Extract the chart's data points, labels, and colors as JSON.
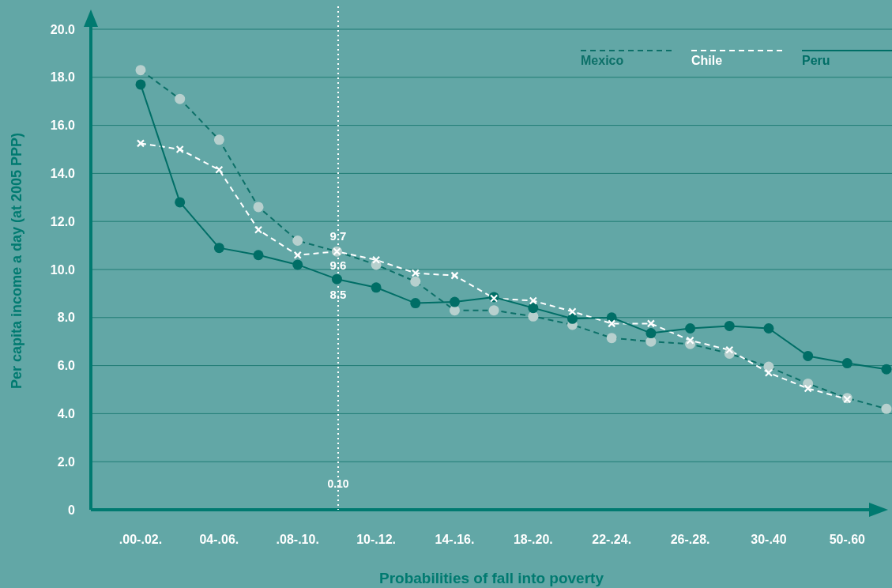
{
  "chart_data": {
    "type": "line",
    "xlabel": "Probabilities of fall into poverty",
    "ylabel": "Per capita income a day (at 2005 PPP)",
    "categories": [
      ".00-.02.",
      null,
      "04-.06.",
      null,
      ".08-.10.",
      null,
      "10-.12.",
      null,
      "14-.16.",
      null,
      "18-.20.",
      null,
      "22-.24.",
      null,
      "26-.28.",
      null,
      "30-.40",
      null,
      "50-.60",
      null
    ],
    "series": [
      {
        "name": "Mexico",
        "color": "#0c7068",
        "marker": "circle",
        "line_style": "dashed",
        "values": [
          18.3,
          17.1,
          15.4,
          12.6,
          11.2,
          10.75,
          10.2,
          9.5,
          8.3,
          8.3,
          8.05,
          7.7,
          7.15,
          7.0,
          6.9,
          6.5,
          5.95,
          5.25,
          4.65,
          4.2
        ]
      },
      {
        "name": "Chile",
        "color": "#ffffff",
        "marker": "cross",
        "line_style": "dashed",
        "values": [
          15.25,
          15.0,
          14.15,
          11.65,
          10.6,
          10.75,
          10.4,
          9.85,
          9.75,
          8.8,
          8.7,
          8.25,
          7.75,
          7.75,
          7.05,
          6.65,
          5.7,
          5.05,
          4.6,
          null
        ]
      },
      {
        "name": "Peru",
        "color": "#006e66",
        "marker": "circle",
        "line_style": "solid",
        "values": [
          17.7,
          12.8,
          10.9,
          10.6,
          10.2,
          9.6,
          9.25,
          8.6,
          8.65,
          8.85,
          8.4,
          7.95,
          8.0,
          7.35,
          7.55,
          7.65,
          7.55,
          6.4,
          6.1,
          5.85
        ]
      }
    ],
    "ylim": [
      0,
      20
    ],
    "yticks": [
      0,
      {
        "value": 2,
        "label": "2.0"
      },
      {
        "value": 4,
        "label": "4.0"
      },
      {
        "value": 6,
        "label": "6.0"
      },
      {
        "value": 8,
        "label": "8.0"
      },
      {
        "value": 10,
        "label": "10.0"
      },
      {
        "value": 12,
        "label": "12.0"
      },
      {
        "value": 14,
        "label": "14.0"
      },
      {
        "value": 16,
        "label": "16.0"
      },
      {
        "value": 18,
        "label": "18.0"
      },
      {
        "value": 20,
        "label": "20.0"
      }
    ],
    "grid": "y",
    "legend": "top right",
    "annotations": [
      "9.7",
      "9.6",
      "8.5",
      "0.10"
    ]
  }
}
